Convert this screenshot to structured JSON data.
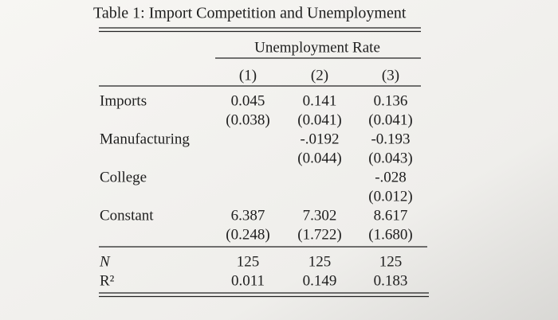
{
  "title": "Table 1: Import Competition and Unemployment",
  "table": {
    "group_header": "Unemployment Rate",
    "columns": [
      "(1)",
      "(2)",
      "(3)"
    ],
    "rows": [
      {
        "label": "Imports",
        "coef": [
          "0.045",
          "0.141",
          "0.136"
        ],
        "se": [
          "(0.038)",
          "(0.041)",
          "(0.041)"
        ]
      },
      {
        "label": "Manufacturing",
        "coef": [
          null,
          "-.0192",
          "-0.193"
        ],
        "se": [
          null,
          "(0.044)",
          "(0.043)"
        ]
      },
      {
        "label": "College",
        "coef": [
          null,
          null,
          "-.028"
        ],
        "se": [
          null,
          null,
          "(0.012)"
        ]
      },
      {
        "label": "Constant",
        "coef": [
          "6.387",
          "7.302",
          "8.617"
        ],
        "se": [
          "(0.248)",
          "(1.722)",
          "(1.680)"
        ]
      }
    ],
    "stats": [
      {
        "label": "N",
        "values": [
          "125",
          "125",
          "125"
        ]
      },
      {
        "label": "R²",
        "values": [
          "0.011",
          "0.149",
          "0.183"
        ]
      }
    ]
  }
}
